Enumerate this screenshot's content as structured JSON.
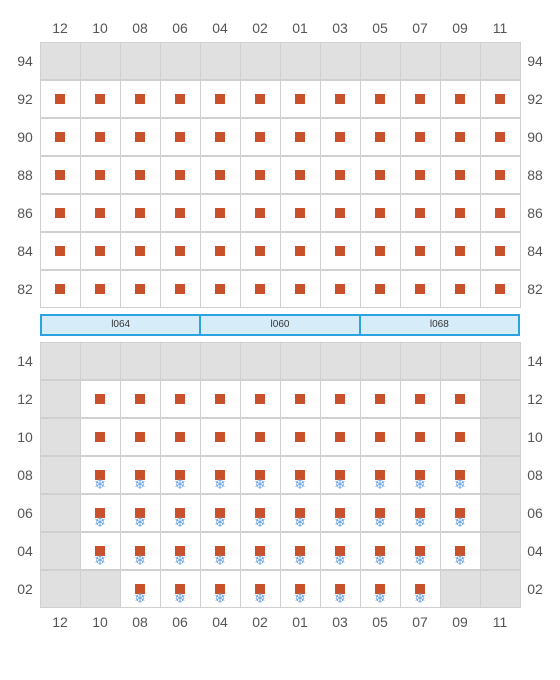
{
  "columns": [
    "12",
    "10",
    "08",
    "06",
    "04",
    "02",
    "01",
    "03",
    "05",
    "07",
    "09",
    "11"
  ],
  "seat_color": "#c8502a",
  "snow_color": "#6aa3e0",
  "grid_border": "#d0d0d0",
  "disabled_bg": "#e0e0e0",
  "label_color": "#555555",
  "light_border": "#2aa3e0",
  "light_bg": "#d6ecf8",
  "lights": [
    "l064",
    "l060",
    "l068"
  ],
  "upper": {
    "rows": [
      "94",
      "92",
      "90",
      "88",
      "86",
      "84",
      "82"
    ],
    "cells": [
      [
        "d",
        "d",
        "d",
        "d",
        "d",
        "d",
        "d",
        "d",
        "d",
        "d",
        "d",
        "d"
      ],
      [
        "s",
        "s",
        "s",
        "s",
        "s",
        "s",
        "s",
        "s",
        "s",
        "s",
        "s",
        "s"
      ],
      [
        "s",
        "s",
        "s",
        "s",
        "s",
        "s",
        "s",
        "s",
        "s",
        "s",
        "s",
        "s"
      ],
      [
        "s",
        "s",
        "s",
        "s",
        "s",
        "s",
        "s",
        "s",
        "s",
        "s",
        "s",
        "s"
      ],
      [
        "s",
        "s",
        "s",
        "s",
        "s",
        "s",
        "s",
        "s",
        "s",
        "s",
        "s",
        "s"
      ],
      [
        "s",
        "s",
        "s",
        "s",
        "s",
        "s",
        "s",
        "s",
        "s",
        "s",
        "s",
        "s"
      ],
      [
        "s",
        "s",
        "s",
        "s",
        "s",
        "s",
        "s",
        "s",
        "s",
        "s",
        "s",
        "s"
      ]
    ]
  },
  "lower": {
    "rows": [
      "14",
      "12",
      "10",
      "08",
      "06",
      "04",
      "02"
    ],
    "cells": [
      [
        "d",
        "d",
        "d",
        "d",
        "d",
        "d",
        "d",
        "d",
        "d",
        "d",
        "d",
        "d"
      ],
      [
        "d",
        "s",
        "s",
        "s",
        "s",
        "s",
        "s",
        "s",
        "s",
        "s",
        "s",
        "d"
      ],
      [
        "d",
        "s",
        "s",
        "s",
        "s",
        "s",
        "s",
        "s",
        "s",
        "s",
        "s",
        "d"
      ],
      [
        "d",
        "sf",
        "sf",
        "sf",
        "sf",
        "sf",
        "sf",
        "sf",
        "sf",
        "sf",
        "sf",
        "d"
      ],
      [
        "d",
        "sf",
        "sf",
        "sf",
        "sf",
        "sf",
        "sf",
        "sf",
        "sf",
        "sf",
        "sf",
        "d"
      ],
      [
        "d",
        "sf",
        "sf",
        "sf",
        "sf",
        "sf",
        "sf",
        "sf",
        "sf",
        "sf",
        "sf",
        "d"
      ],
      [
        "d",
        "d",
        "sf",
        "sf",
        "sf",
        "sf",
        "sf",
        "sf",
        "sf",
        "sf",
        "d",
        "d"
      ]
    ]
  }
}
